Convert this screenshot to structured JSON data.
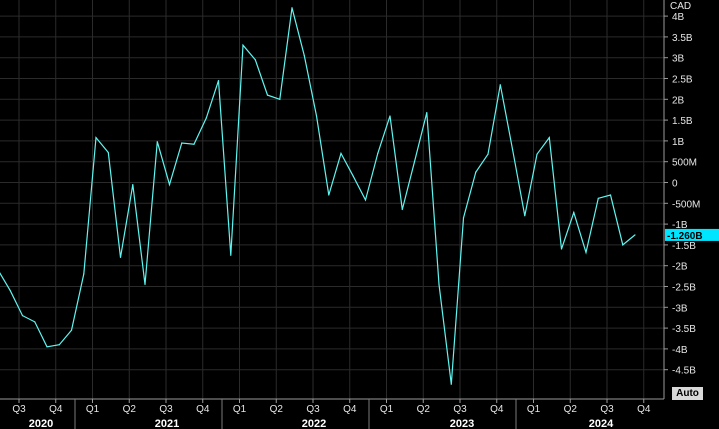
{
  "chart_data": {
    "type": "line",
    "unit_label": "CAD",
    "y_ticks": [
      {
        "v": 4,
        "label": "4B"
      },
      {
        "v": 3.5,
        "label": "3.5B"
      },
      {
        "v": 3,
        "label": "3B"
      },
      {
        "v": 2.5,
        "label": "2.5B"
      },
      {
        "v": 2,
        "label": "2B"
      },
      {
        "v": 1.5,
        "label": "1.5B"
      },
      {
        "v": 1,
        "label": "1B"
      },
      {
        "v": 0.5,
        "label": "500M"
      },
      {
        "v": 0,
        "label": "0"
      },
      {
        "v": -0.5,
        "label": "-500M"
      },
      {
        "v": -1,
        "label": "-1B"
      },
      {
        "v": -1.5,
        "label": "-1.5B"
      },
      {
        "v": -2,
        "label": "-2B"
      },
      {
        "v": -2.5,
        "label": "-2.5B"
      },
      {
        "v": -3,
        "label": "-3B"
      },
      {
        "v": -3.5,
        "label": "-3.5B"
      },
      {
        "v": -4,
        "label": "-4B"
      },
      {
        "v": -4.5,
        "label": "-4.5B"
      }
    ],
    "ylim": [
      -5.1,
      4.4
    ],
    "quarters": [
      "Q3",
      "Q4",
      "Q1",
      "Q2",
      "Q3",
      "Q4",
      "Q1",
      "Q2",
      "Q3",
      "Q4",
      "Q1",
      "Q2",
      "Q3",
      "Q4",
      "Q1",
      "Q2",
      "Q3",
      "Q4",
      "Q1",
      "Q2",
      "Q3",
      "Q4"
    ],
    "years": [
      "2020",
      "2021",
      "2022",
      "2023",
      "2024"
    ],
    "series": [
      {
        "values": [
          -2.1,
          -2.6,
          -3.2,
          -3.35,
          -3.95,
          -3.9,
          -3.55,
          -2.2,
          1.08,
          0.72,
          -1.8,
          -0.05,
          -2.45,
          0.98,
          -0.05,
          0.95,
          0.92,
          1.55,
          2.45,
          -1.75,
          3.3,
          2.95,
          2.1,
          2.0,
          4.2,
          3.05,
          1.6,
          -0.3,
          0.7,
          0.15,
          -0.42,
          0.7,
          1.6,
          -0.65,
          0.5,
          1.68,
          -2.45,
          -4.85,
          -0.85,
          0.25,
          0.68,
          2.35,
          0.8,
          -0.8,
          0.68,
          1.08,
          -1.6,
          -0.72,
          -1.68,
          -0.38,
          -0.3,
          -1.5,
          -1.26
        ]
      }
    ],
    "last_value_label": "-1.260B",
    "line_color": "#5ff5f0",
    "last_label_bg": "#00e5ff"
  },
  "toolbar": {
    "auto_label": "Auto"
  }
}
